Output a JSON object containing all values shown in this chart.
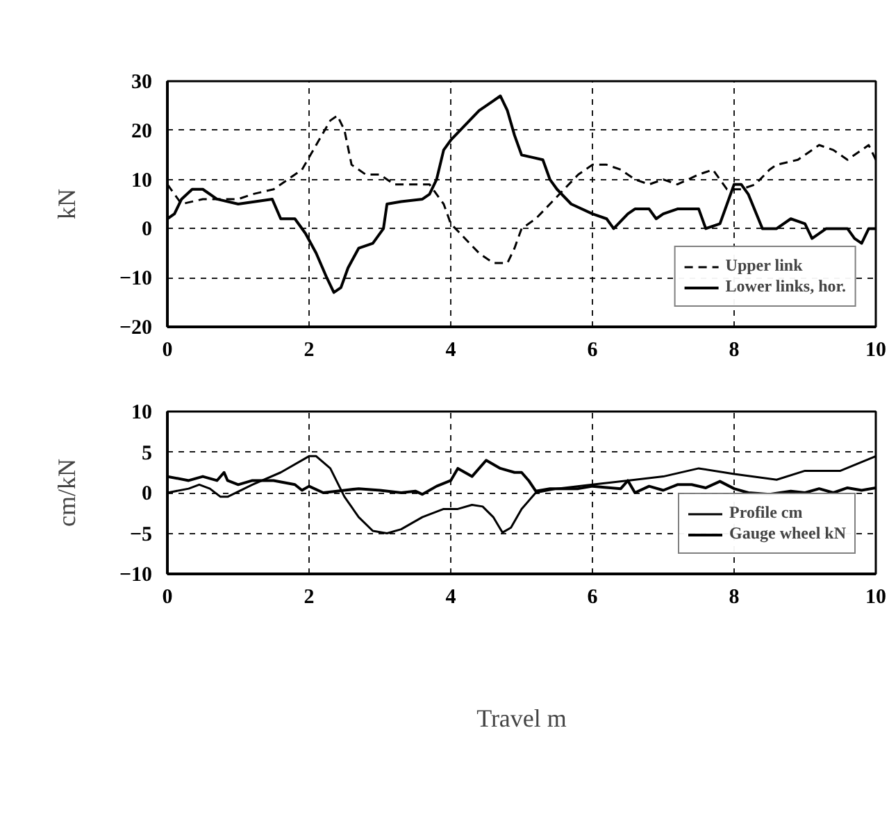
{
  "chart_data": [
    {
      "type": "line",
      "ylabel": "kN",
      "xlim": [
        0,
        10
      ],
      "ylim": [
        -20,
        30
      ],
      "xticks": [
        0,
        2,
        4,
        6,
        8,
        10
      ],
      "yticks": [
        -20,
        -10,
        0,
        10,
        20,
        30
      ],
      "grid": true,
      "legend": "bottom right",
      "series": [
        {
          "name": "Upper link",
          "color": "#000000",
          "line_style": "dashed",
          "x": [
            0,
            0.2,
            0.5,
            1,
            1.2,
            1.5,
            1.7,
            1.9,
            2.1,
            2.3,
            2.4,
            2.5,
            2.6,
            2.8,
            3,
            3.2,
            3.5,
            3.7,
            3.9,
            4.0,
            4.2,
            4.4,
            4.6,
            4.8,
            4.9,
            5.0,
            5.2,
            5.4,
            5.6,
            5.8,
            6.0,
            6.2,
            6.4,
            6.6,
            6.8,
            7.0,
            7.2,
            7.5,
            7.7,
            7.8,
            7.9,
            8.1,
            8.3,
            8.5,
            8.6,
            8.9,
            9.2,
            9.4,
            9.6,
            9.8,
            9.9,
            10
          ],
          "values": [
            9,
            5,
            6,
            6,
            7,
            8,
            10,
            12,
            17,
            22,
            23,
            20,
            13,
            11,
            11,
            9,
            9,
            9,
            5,
            1,
            -2,
            -5,
            -7,
            -7,
            -4,
            0,
            2,
            5,
            8,
            11,
            13,
            13,
            12,
            10,
            9,
            10,
            9,
            11,
            12,
            10,
            8,
            8,
            9,
            12,
            13,
            14,
            17,
            16,
            14,
            16,
            17,
            14
          ]
        },
        {
          "name": "Lower links, hor.",
          "color": "#000000",
          "line_style": "solid",
          "x": [
            0,
            0.1,
            0.2,
            0.35,
            0.5,
            0.7,
            1,
            1.48,
            1.6,
            1.8,
            1.95,
            2.1,
            2.25,
            2.35,
            2.45,
            2.55,
            2.7,
            2.9,
            3.05,
            3.1,
            3.3,
            3.6,
            3.7,
            3.8,
            3.9,
            4.0,
            4.2,
            4.4,
            4.6,
            4.7,
            4.8,
            4.9,
            5.0,
            5.3,
            5.4,
            5.5,
            5.7,
            6.0,
            6.2,
            6.3,
            6.5,
            6.6,
            6.8,
            6.9,
            7.0,
            7.2,
            7.5,
            7.6,
            7.8,
            7.9,
            8.0,
            8.1,
            8.2,
            8.4,
            8.6,
            8.8,
            9.0,
            9.1,
            9.3,
            9.6,
            9.7,
            9.8,
            9.9,
            10
          ],
          "values": [
            2,
            3,
            6,
            8,
            8,
            6,
            5,
            6,
            2,
            2,
            -1,
            -5,
            -10,
            -13,
            -12,
            -8,
            -4,
            -3,
            0,
            5,
            5.5,
            6,
            7,
            10,
            16,
            18,
            21,
            24,
            26,
            27,
            24,
            19,
            15,
            14,
            10,
            8,
            5,
            3,
            2,
            0,
            3,
            4,
            4,
            2,
            3,
            4,
            4,
            0,
            1,
            5,
            9,
            9,
            7,
            0,
            0,
            2,
            1,
            -2,
            0,
            0,
            -2,
            -3,
            0,
            0
          ]
        }
      ]
    },
    {
      "type": "line",
      "ylabel": "cm/kN",
      "xlabel": "Travel m",
      "xlim": [
        0,
        10
      ],
      "ylim": [
        -10,
        10
      ],
      "xticks": [
        0,
        2,
        4,
        6,
        8,
        10
      ],
      "yticks": [
        -10,
        -5,
        0,
        5,
        10
      ],
      "grid": true,
      "legend": "bottom right",
      "series": [
        {
          "name": "Profile cm",
          "color": "#000000",
          "line_style": "solid",
          "x": [
            0,
            0.3,
            0.45,
            0.6,
            0.75,
            0.85,
            1.2,
            1.6,
            2.0,
            2.1,
            2.3,
            2.5,
            2.7,
            2.9,
            3.1,
            3.3,
            3.6,
            3.9,
            4.1,
            4.3,
            4.45,
            4.6,
            4.73,
            4.85,
            5.0,
            5.2,
            5.5,
            6,
            6.5,
            7,
            7.5,
            8,
            8.6,
            9,
            9.5,
            10
          ],
          "values": [
            0,
            0.5,
            1,
            0.5,
            -0.5,
            -0.5,
            1,
            2.5,
            4.5,
            4.5,
            3,
            -0.5,
            -3,
            -4.7,
            -5,
            -4.5,
            -3,
            -2,
            -2,
            -1.5,
            -1.7,
            -3,
            -4.9,
            -4.3,
            -2,
            0,
            0.5,
            1,
            1.5,
            2,
            3,
            2.3,
            1.6,
            2.7,
            2.7,
            4.5
          ]
        },
        {
          "name": "Gauge wheel kN",
          "color": "#000000",
          "line_style": "solid",
          "x": [
            0,
            0.3,
            0.5,
            0.7,
            0.8,
            0.85,
            1.0,
            1.2,
            1.5,
            1.8,
            1.9,
            2.0,
            2.2,
            2.5,
            2.7,
            3.0,
            3.3,
            3.5,
            3.6,
            3.8,
            4.0,
            4.1,
            4.3,
            4.5,
            4.7,
            4.9,
            5.0,
            5.1,
            5.2,
            5.4,
            5.8,
            6.0,
            6.4,
            6.5,
            6.6,
            6.8,
            7.0,
            7.2,
            7.4,
            7.6,
            7.8,
            8.0,
            8.2,
            8.5,
            8.8,
            9.0,
            9.2,
            9.4,
            9.6,
            9.8,
            10
          ],
          "values": [
            2,
            1.5,
            2,
            1.5,
            2.5,
            1.5,
            1,
            1.5,
            1.5,
            1,
            0.3,
            0.8,
            0,
            0.3,
            0.5,
            0.3,
            0,
            0.2,
            -0.2,
            0.8,
            1.5,
            3,
            2,
            4,
            3,
            2.5,
            2.5,
            1.5,
            0.2,
            0.5,
            0.5,
            0.8,
            0.5,
            1.5,
            0,
            0.8,
            0.3,
            1,
            1,
            0.6,
            1.4,
            0.5,
            0,
            -0.2,
            0.2,
            0,
            0.5,
            0,
            0.6,
            0.3,
            0.6
          ]
        }
      ]
    }
  ]
}
